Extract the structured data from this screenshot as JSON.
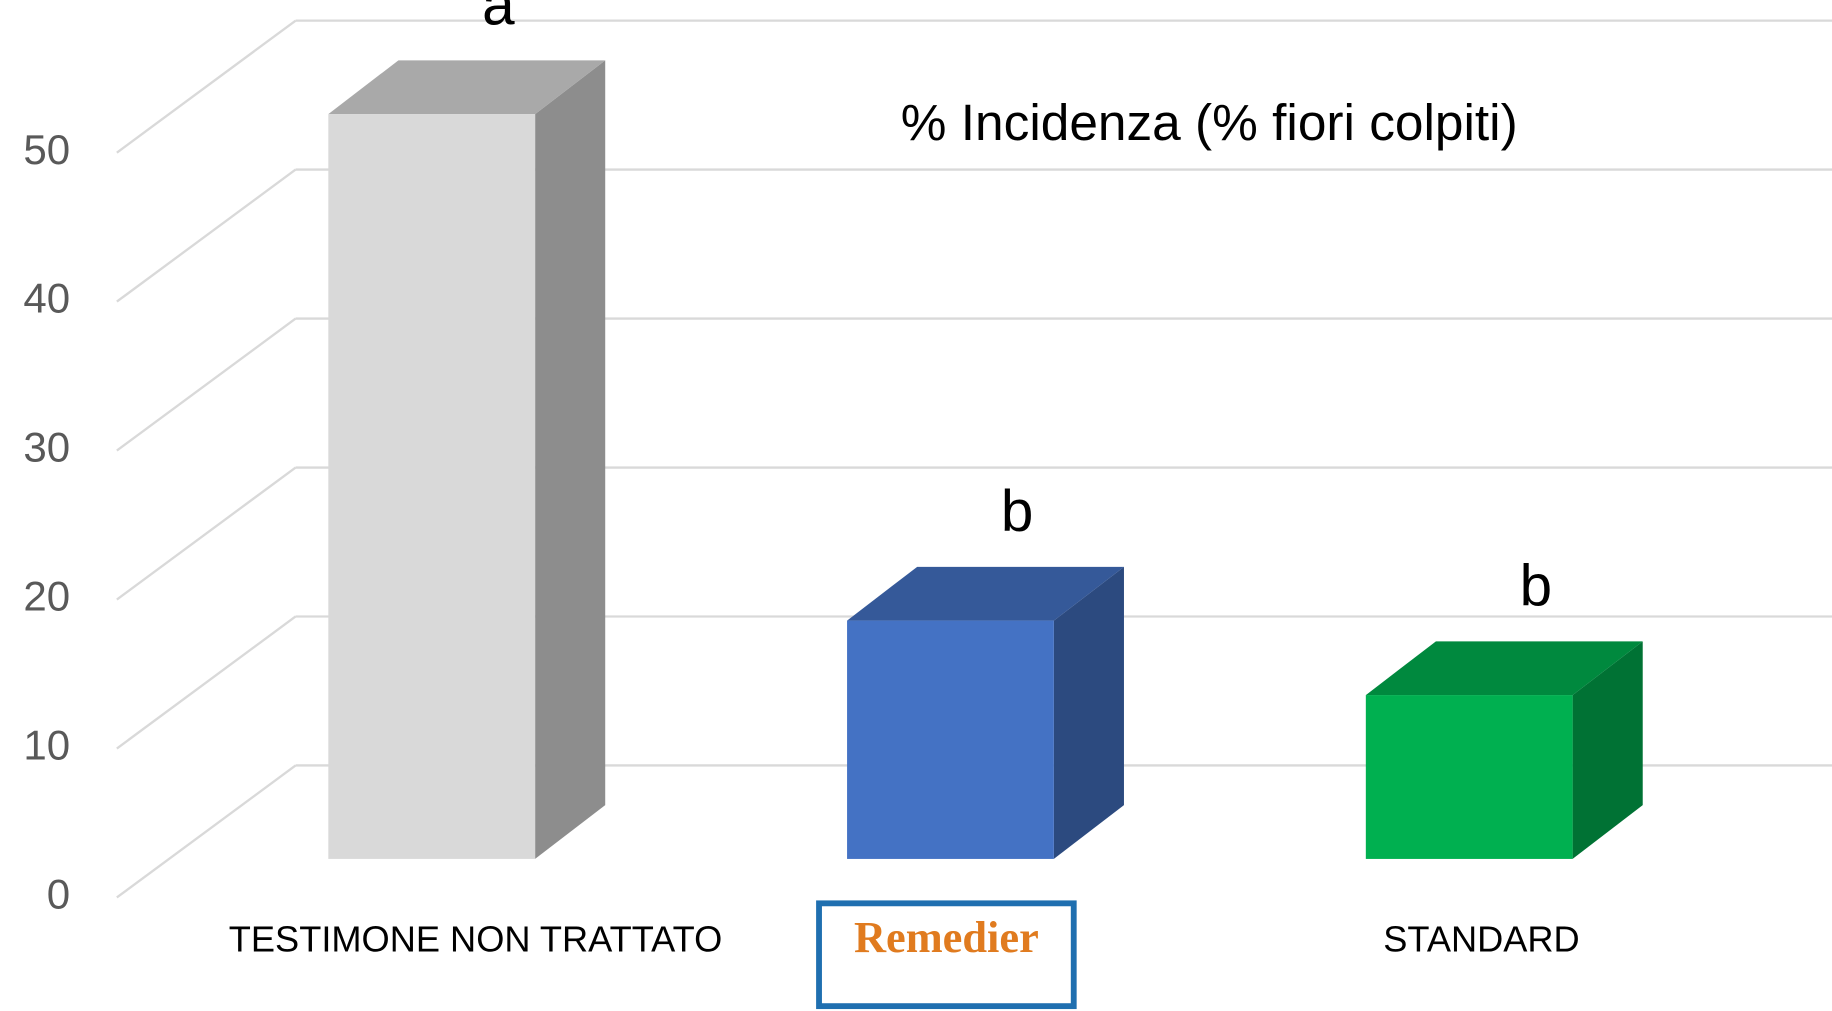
{
  "chart_data": {
    "type": "bar3d",
    "title": "% Incidenza (% fiori colpiti)",
    "categories": [
      "TESTIMONE NON TRATTATO",
      "Remedier",
      "STANDARD"
    ],
    "values": [
      50,
      16,
      11
    ],
    "colors": [
      "#d9d9d9",
      "#4472c4",
      "#00b050"
    ],
    "annotations": [
      "a",
      "b",
      "b"
    ],
    "ylim": [
      0,
      50
    ],
    "yticks": [
      0,
      10,
      20,
      30,
      40,
      50
    ],
    "grid": true
  }
}
